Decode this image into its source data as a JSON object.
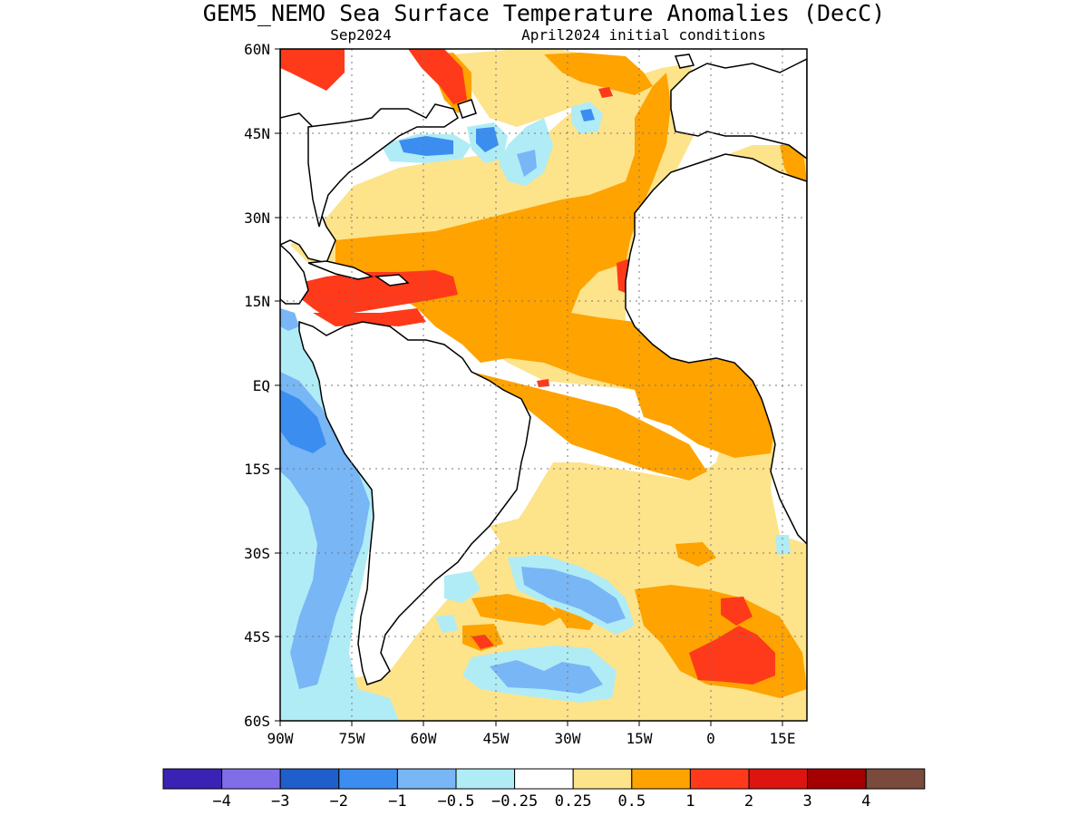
{
  "title": "GEM5_NEMO Sea Surface Temperature Anomalies (DecC)",
  "subtitle_left": "Sep2024",
  "subtitle_right": "April2024 initial conditions",
  "map": {
    "lon_range": [
      -90,
      20
    ],
    "lat_range": [
      -60,
      60
    ],
    "lat_ticks": [
      {
        "value": 60,
        "label": "60N"
      },
      {
        "value": 45,
        "label": "45N"
      },
      {
        "value": 30,
        "label": "30N"
      },
      {
        "value": 15,
        "label": "15N"
      },
      {
        "value": 0,
        "label": "EQ"
      },
      {
        "value": -15,
        "label": "15S"
      },
      {
        "value": -30,
        "label": "30S"
      },
      {
        "value": -45,
        "label": "45S"
      },
      {
        "value": -60,
        "label": "60S"
      }
    ],
    "lon_ticks": [
      {
        "value": -90,
        "label": "90W"
      },
      {
        "value": -75,
        "label": "75W"
      },
      {
        "value": -60,
        "label": "60W"
      },
      {
        "value": -45,
        "label": "45W"
      },
      {
        "value": -30,
        "label": "30W"
      },
      {
        "value": -15,
        "label": "15W"
      },
      {
        "value": 0,
        "label": "0"
      },
      {
        "value": 15,
        "label": "15E"
      }
    ],
    "gridlines": "dotted"
  },
  "colorbar": {
    "colors": [
      "#3a22b4",
      "#7f6ee8",
      "#1f5fcc",
      "#3b8ef0",
      "#78b6f5",
      "#b0ecf6",
      "#ffffff",
      "#fde38a",
      "#fea300",
      "#fe3a1a",
      "#dd1410",
      "#a40000",
      "#7a4a3c"
    ],
    "labels": [
      "−4",
      "−3",
      "−2",
      "−1",
      "−0.5",
      "−0.25",
      "0.25",
      "0.5",
      "1",
      "2",
      "3",
      "4"
    ]
  }
}
